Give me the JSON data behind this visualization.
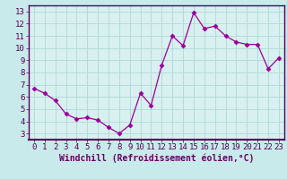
{
  "x": [
    0,
    1,
    2,
    3,
    4,
    5,
    6,
    7,
    8,
    9,
    10,
    11,
    12,
    13,
    14,
    15,
    16,
    17,
    18,
    19,
    20,
    21,
    22,
    23
  ],
  "y": [
    6.7,
    6.3,
    5.7,
    4.6,
    4.2,
    4.3,
    4.1,
    3.5,
    3.0,
    3.7,
    6.3,
    5.3,
    8.6,
    11.0,
    10.2,
    12.9,
    11.6,
    11.8,
    11.0,
    10.5,
    10.3,
    10.3,
    8.3,
    9.2
  ],
  "line_color": "#990099",
  "marker": "D",
  "marker_size": 2.5,
  "bg_color": "#c8eaea",
  "plot_bg_color": "#d8f0f0",
  "grid_color": "#b0d8d8",
  "xlabel": "Windchill (Refroidissement éolien,°C)",
  "ylim": [
    2.5,
    13.5
  ],
  "xlim": [
    -0.5,
    23.5
  ],
  "yticks": [
    3,
    4,
    5,
    6,
    7,
    8,
    9,
    10,
    11,
    12,
    13
  ],
  "xticks": [
    0,
    1,
    2,
    3,
    4,
    5,
    6,
    7,
    8,
    9,
    10,
    11,
    12,
    13,
    14,
    15,
    16,
    17,
    18,
    19,
    20,
    21,
    22,
    23
  ],
  "xlabel_fontsize": 7.0,
  "tick_fontsize": 6.5,
  "axis_label_color": "#660066",
  "tick_color": "#550055",
  "spine_color": "#550055",
  "bottom_bar_color": "#550055"
}
